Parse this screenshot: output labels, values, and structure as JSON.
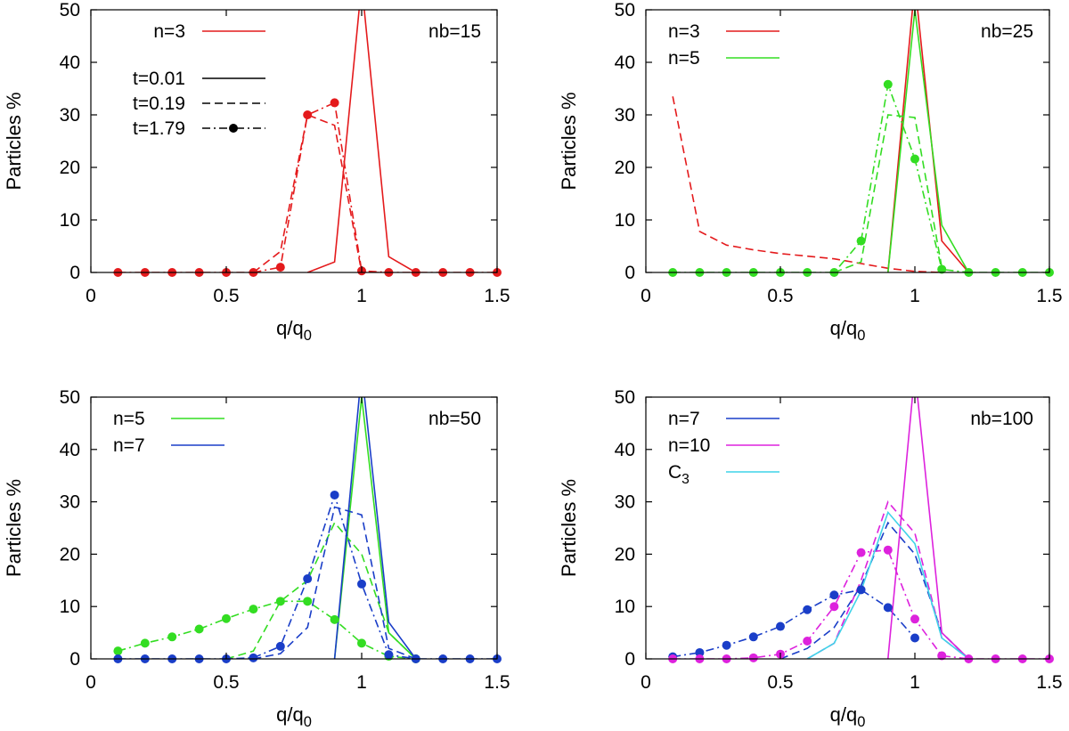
{
  "figure": {
    "legend_time_labels": [
      "t=0.01",
      "t=0.19",
      "t=1.79"
    ]
  },
  "chart_data": [
    {
      "type": "line",
      "xlabel": "q/q0",
      "ylabel": "Particles %",
      "xlim": [
        0,
        1.5
      ],
      "ylim": [
        0,
        50
      ],
      "xticks": [
        "0",
        "0.5",
        "1",
        "1.5"
      ],
      "yticks": [
        "0",
        "10",
        "20",
        "30",
        "40",
        "50"
      ],
      "grid": false,
      "annotation": "nb=15",
      "legend": [
        "n=3"
      ],
      "series": [
        {
          "name": "n=3",
          "time": "t=0.01",
          "style": "solid",
          "color": "#e41a1c",
          "x": [
            0.8,
            0.9,
            1.0,
            1.1,
            1.2
          ],
          "y": [
            0,
            2,
            55,
            3,
            0
          ]
        },
        {
          "name": "n=3",
          "time": "t=0.19",
          "style": "dashed",
          "color": "#e41a1c",
          "x": [
            0.6,
            0.7,
            0.8,
            0.9,
            1.0,
            1.1
          ],
          "y": [
            0,
            4,
            30,
            28,
            0,
            0
          ]
        },
        {
          "name": "n=3",
          "time": "t=1.79",
          "style": "dashdot-markers",
          "color": "#e41a1c",
          "x": [
            0.1,
            0.2,
            0.3,
            0.4,
            0.5,
            0.6,
            0.7,
            0.8,
            0.9,
            1.0,
            1.1,
            1.2,
            1.3,
            1.4,
            1.5
          ],
          "y": [
            0,
            0,
            0,
            0,
            0,
            0,
            1,
            30,
            32.3,
            0.3,
            0,
            0,
            0,
            0,
            0
          ]
        }
      ]
    },
    {
      "type": "line",
      "xlabel": "q/q0",
      "ylabel": "Particles %",
      "xlim": [
        0,
        1.5
      ],
      "ylim": [
        0,
        50
      ],
      "xticks": [
        "0",
        "0.5",
        "1",
        "1.5"
      ],
      "yticks": [
        "0",
        "10",
        "20",
        "30",
        "40",
        "50"
      ],
      "grid": false,
      "annotation": "nb=25",
      "legend": [
        "n=3",
        "n=5"
      ],
      "series": [
        {
          "name": "n=3",
          "time": "t=0.01",
          "style": "solid",
          "color": "#e41a1c",
          "x": [
            0.9,
            1.0,
            1.1,
            1.2
          ],
          "y": [
            0,
            55,
            6,
            0
          ]
        },
        {
          "name": "n=3",
          "time": "t=0.19",
          "style": "dashed",
          "color": "#e41a1c",
          "x": [
            0.1,
            0.2,
            0.3,
            0.4,
            0.5,
            0.6,
            0.7,
            0.8,
            0.9,
            1.0,
            1.1
          ],
          "y": [
            33.5,
            7.8,
            5.2,
            4.3,
            3.6,
            3.1,
            2.6,
            1.7,
            0.8,
            0.2,
            0
          ]
        },
        {
          "name": "n=5",
          "time": "t=0.01",
          "style": "solid",
          "color": "#33dd22",
          "x": [
            0.9,
            1.0,
            1.1,
            1.2
          ],
          "y": [
            0,
            50,
            9,
            0
          ]
        },
        {
          "name": "n=5",
          "time": "t=0.19",
          "style": "dashed",
          "color": "#33dd22",
          "x": [
            0.7,
            0.8,
            0.9,
            1.0,
            1.1
          ],
          "y": [
            0,
            2,
            30,
            29.5,
            1
          ]
        },
        {
          "name": "n=5",
          "time": "t=1.79",
          "style": "dashdot-markers",
          "color": "#33dd22",
          "x": [
            0.1,
            0.2,
            0.3,
            0.4,
            0.5,
            0.6,
            0.7,
            0.8,
            0.9,
            1.0,
            1.1,
            1.2,
            1.3,
            1.4,
            1.5
          ],
          "y": [
            0,
            0,
            0,
            0,
            0,
            0,
            0,
            6,
            35.8,
            21.6,
            0.6,
            0,
            0,
            0,
            0
          ]
        }
      ]
    },
    {
      "type": "line",
      "xlabel": "q/q0",
      "ylabel": "Particles %",
      "xlim": [
        0,
        1.5
      ],
      "ylim": [
        0,
        50
      ],
      "xticks": [
        "0",
        "0.5",
        "1",
        "1.5"
      ],
      "yticks": [
        "0",
        "10",
        "20",
        "30",
        "40",
        "50"
      ],
      "grid": false,
      "annotation": "nb=50",
      "legend": [
        "n=5",
        "n=7"
      ],
      "series": [
        {
          "name": "n=5",
          "time": "t=0.01",
          "style": "solid",
          "color": "#33dd22",
          "x": [
            0.9,
            1.0,
            1.1,
            1.2
          ],
          "y": [
            0,
            50,
            5,
            0
          ]
        },
        {
          "name": "n=5",
          "time": "t=0.19",
          "style": "dashed",
          "color": "#33dd22",
          "x": [
            0.5,
            0.6,
            0.7,
            0.8,
            0.9,
            1.0,
            1.1,
            1.2
          ],
          "y": [
            0,
            1.5,
            11,
            15,
            26,
            20,
            5,
            0
          ]
        },
        {
          "name": "n=5",
          "time": "t=1.79",
          "style": "dashdot-markers",
          "color": "#33dd22",
          "x": [
            0.1,
            0.2,
            0.3,
            0.4,
            0.5,
            0.6,
            0.7,
            0.8,
            0.9,
            1.0,
            1.1,
            1.2
          ],
          "y": [
            1.5,
            3,
            4.2,
            5.7,
            7.7,
            9.5,
            11,
            11,
            7.5,
            3,
            0.5,
            0
          ]
        },
        {
          "name": "n=7",
          "time": "t=0.01",
          "style": "solid",
          "color": "#1a3ec8",
          "x": [
            0.9,
            1.0,
            1.1,
            1.2
          ],
          "y": [
            0,
            55,
            7,
            0
          ]
        },
        {
          "name": "n=7",
          "time": "t=0.19",
          "style": "dashed",
          "color": "#1a3ec8",
          "x": [
            0.6,
            0.7,
            0.8,
            0.9,
            1.0,
            1.1,
            1.2
          ],
          "y": [
            0,
            1,
            6,
            29,
            27.5,
            2,
            0
          ]
        },
        {
          "name": "n=7",
          "time": "t=1.79",
          "style": "dashdot-markers",
          "color": "#1a3ec8",
          "x": [
            0.1,
            0.2,
            0.3,
            0.4,
            0.5,
            0.6,
            0.7,
            0.8,
            0.9,
            1.0,
            1.1,
            1.2,
            1.3,
            1.4,
            1.5
          ],
          "y": [
            0,
            0,
            0,
            0,
            0,
            0.2,
            2.4,
            15.3,
            31.3,
            14.3,
            0.8,
            0,
            0,
            0,
            0
          ]
        }
      ]
    },
    {
      "type": "line",
      "xlabel": "q/q0",
      "ylabel": "Particles %",
      "xlim": [
        0,
        1.5
      ],
      "ylim": [
        0,
        50
      ],
      "xticks": [
        "0",
        "0.5",
        "1",
        "1.5"
      ],
      "yticks": [
        "0",
        "10",
        "20",
        "30",
        "40",
        "50"
      ],
      "grid": false,
      "annotation": "nb=100",
      "legend": [
        "n=7",
        "n=10",
        "C3"
      ],
      "series": [
        {
          "name": "n=7",
          "time": "t=0.19",
          "style": "dashed",
          "color": "#1a3ec8",
          "x": [
            0.5,
            0.6,
            0.7,
            0.8,
            0.9,
            1.0,
            1.1,
            1.2
          ],
          "y": [
            0,
            2,
            6,
            14,
            26,
            20,
            5,
            0
          ]
        },
        {
          "name": "n=7",
          "time": "t=1.79",
          "style": "dashdot-markers",
          "color": "#1a3ec8",
          "x": [
            0.1,
            0.2,
            0.3,
            0.4,
            0.5,
            0.6,
            0.7,
            0.8,
            0.9,
            1.0
          ],
          "y": [
            0.4,
            1.2,
            2.6,
            4.2,
            6.2,
            9.4,
            12.2,
            13.2,
            9.8,
            4.0
          ]
        },
        {
          "name": "n=10",
          "time": "t=0.01",
          "style": "solid",
          "color": "#dd22dd",
          "x": [
            0.9,
            1.0,
            1.1,
            1.2
          ],
          "y": [
            0,
            55,
            5,
            0
          ]
        },
        {
          "name": "n=10",
          "time": "t=0.19",
          "style": "dashed",
          "color": "#dd22dd",
          "x": [
            0.6,
            0.7,
            0.8,
            0.9,
            1.0,
            1.1,
            1.2
          ],
          "y": [
            0,
            3,
            15,
            30,
            24,
            4,
            0
          ]
        },
        {
          "name": "n=10",
          "time": "t=1.79",
          "style": "dashdot-markers",
          "color": "#dd22dd",
          "x": [
            0.1,
            0.2,
            0.3,
            0.4,
            0.5,
            0.6,
            0.7,
            0.8,
            0.9,
            1.0,
            1.1,
            1.2,
            1.3,
            1.4,
            1.5
          ],
          "y": [
            0,
            0,
            0,
            0.2,
            0.9,
            3.4,
            10,
            20.3,
            20.8,
            7.6,
            0.6,
            0,
            0,
            0,
            0
          ]
        },
        {
          "name": "C3",
          "time": "t=0.19",
          "style": "solid",
          "color": "#3fd3e8",
          "x": [
            0.6,
            0.7,
            0.8,
            0.9,
            1.0,
            1.1,
            1.2
          ],
          "y": [
            0,
            3,
            13,
            28,
            22,
            4,
            0
          ]
        }
      ]
    }
  ]
}
